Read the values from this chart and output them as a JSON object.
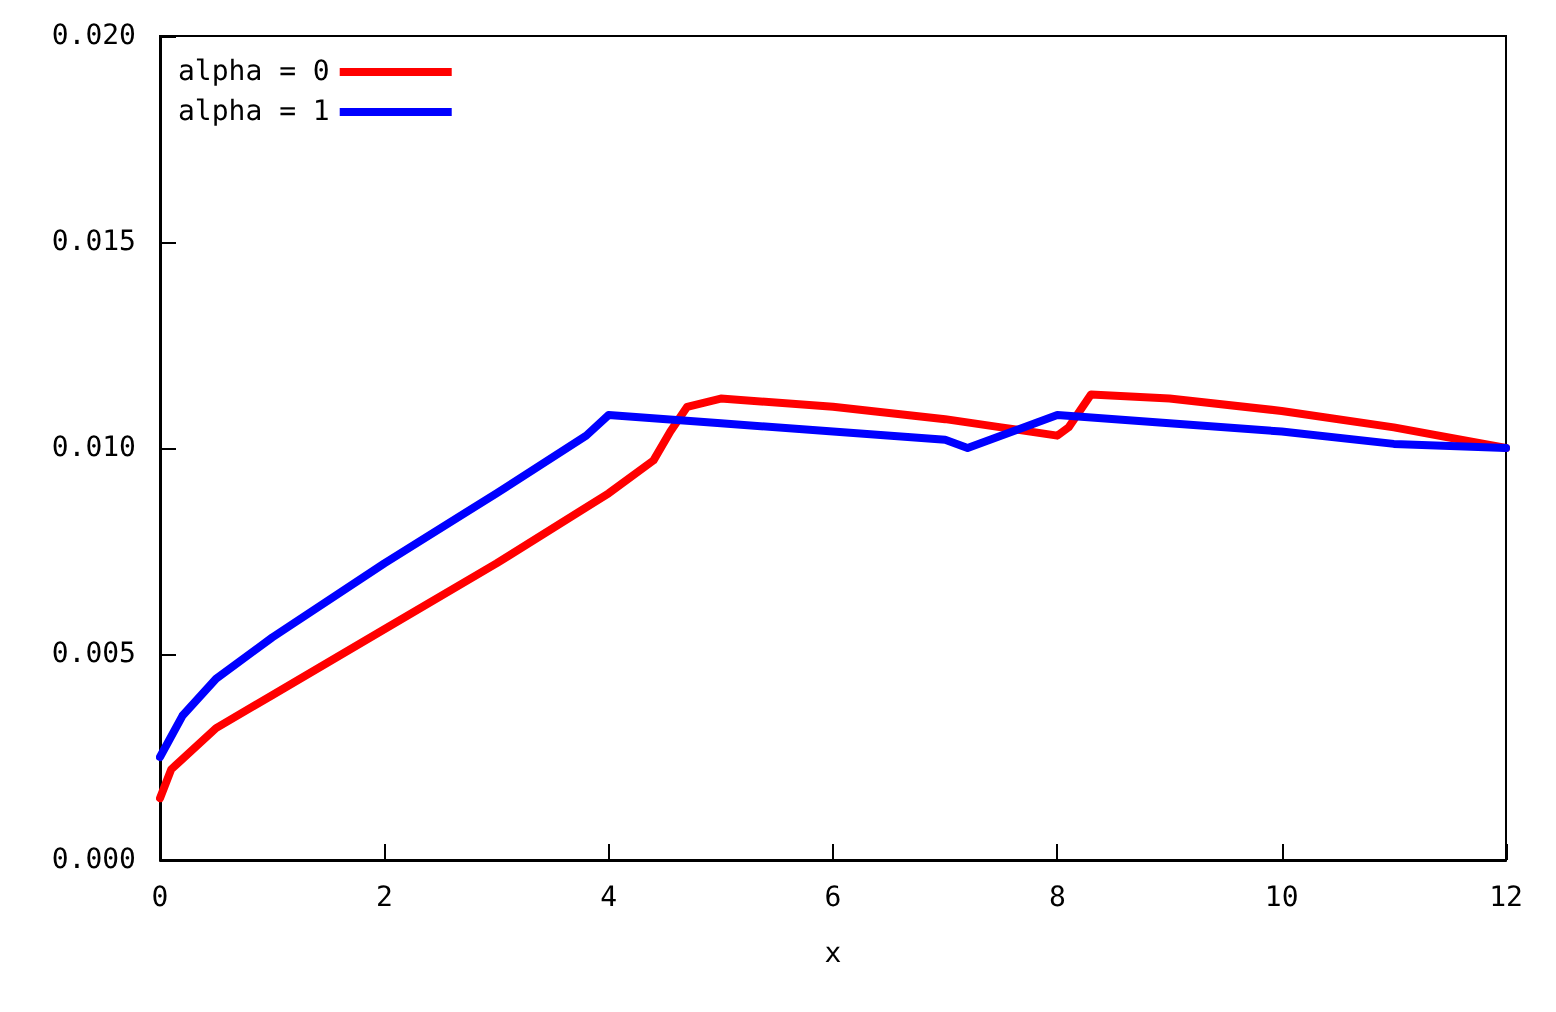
{
  "chart_data": {
    "type": "line",
    "xlabel": "x",
    "xlim": [
      0,
      12
    ],
    "xticks": [
      0,
      2,
      4,
      6,
      8,
      10,
      12
    ],
    "ylim": [
      0,
      0.02
    ],
    "yticks": [
      {
        "value": 0,
        "label": "0.000"
      },
      {
        "value": 0.005,
        "label": "0.005"
      },
      {
        "value": 0.01,
        "label": "0.010"
      },
      {
        "value": 0.015,
        "label": "0.015"
      },
      {
        "value": 0.02,
        "label": "0.020"
      }
    ],
    "grid": false,
    "legend": "top left",
    "marker": "none",
    "line_style": "solid",
    "series": [
      {
        "name": "alpha = 0",
        "color": "#ff0000",
        "x": [
          0,
          0.1,
          0.5,
          1,
          2,
          3,
          4,
          4.4,
          4.55,
          4.7,
          5,
          6,
          7,
          7.5,
          8,
          8.1,
          8.3,
          9,
          10,
          11,
          12
        ],
        "values": [
          0.0015,
          0.0022,
          0.0032,
          0.004,
          0.0056,
          0.0072,
          0.0089,
          0.0097,
          0.0104,
          0.011,
          0.0112,
          0.011,
          0.0107,
          0.0105,
          0.0103,
          0.0105,
          0.0113,
          0.0112,
          0.0109,
          0.0105,
          0.01
        ]
      },
      {
        "name": "alpha = 1",
        "color": "#0000ff",
        "x": [
          0,
          0.2,
          0.5,
          1,
          2,
          3,
          3.8,
          4,
          5,
          6,
          7,
          7.2,
          7.6,
          8,
          9,
          10,
          11,
          12
        ],
        "values": [
          0.0025,
          0.0035,
          0.0044,
          0.0054,
          0.0072,
          0.0089,
          0.0103,
          0.0108,
          0.0106,
          0.0104,
          0.0102,
          0.01,
          0.0104,
          0.0108,
          0.0106,
          0.0104,
          0.0101,
          0.01
        ]
      }
    ]
  }
}
